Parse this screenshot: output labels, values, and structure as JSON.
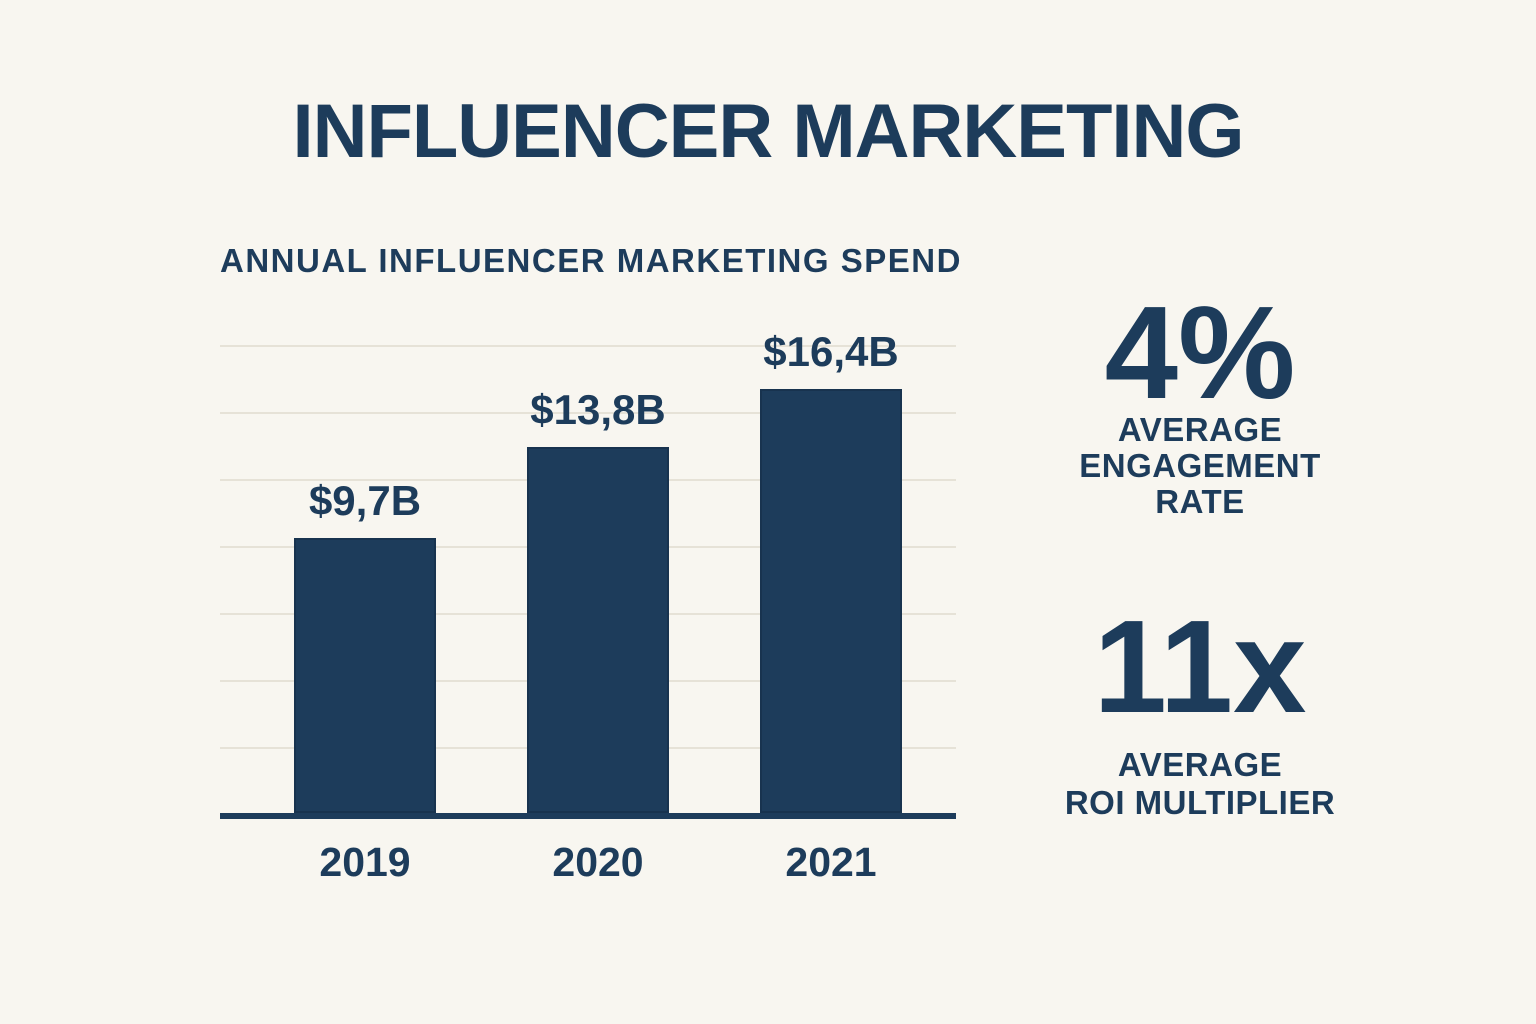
{
  "title": "INFLUENCER MARKETING",
  "colors": {
    "navy": "#1d3c5b",
    "background": "#f8f6f0",
    "gridline": "#e6e2d7"
  },
  "chart_data": {
    "type": "bar",
    "title": "ANNUAL INFLUENCER MARKETING SPEND",
    "categories": [
      "2019",
      "2020",
      "2021"
    ],
    "values": [
      9.7,
      13.8,
      16.4
    ],
    "value_labels": [
      "$9,7B",
      "$13,8B",
      "$16,4B"
    ],
    "xlabel": "",
    "ylabel": "",
    "ylim": [
      0,
      17
    ],
    "grid": "horizontal-only",
    "legend": "none",
    "bar_color": "#1d3c5b"
  },
  "stats": [
    {
      "value": "4%",
      "label": "AVERAGE ENGAGEMENT RATE",
      "label_lines": [
        "AVERAGE",
        "ENGAGEMENT",
        "RATE"
      ]
    },
    {
      "value": "11x",
      "label": "AVERAGE ROI MULTIPLIER",
      "label_lines": [
        "AVERAGE",
        "ROI MULTIPLIER"
      ]
    }
  ]
}
